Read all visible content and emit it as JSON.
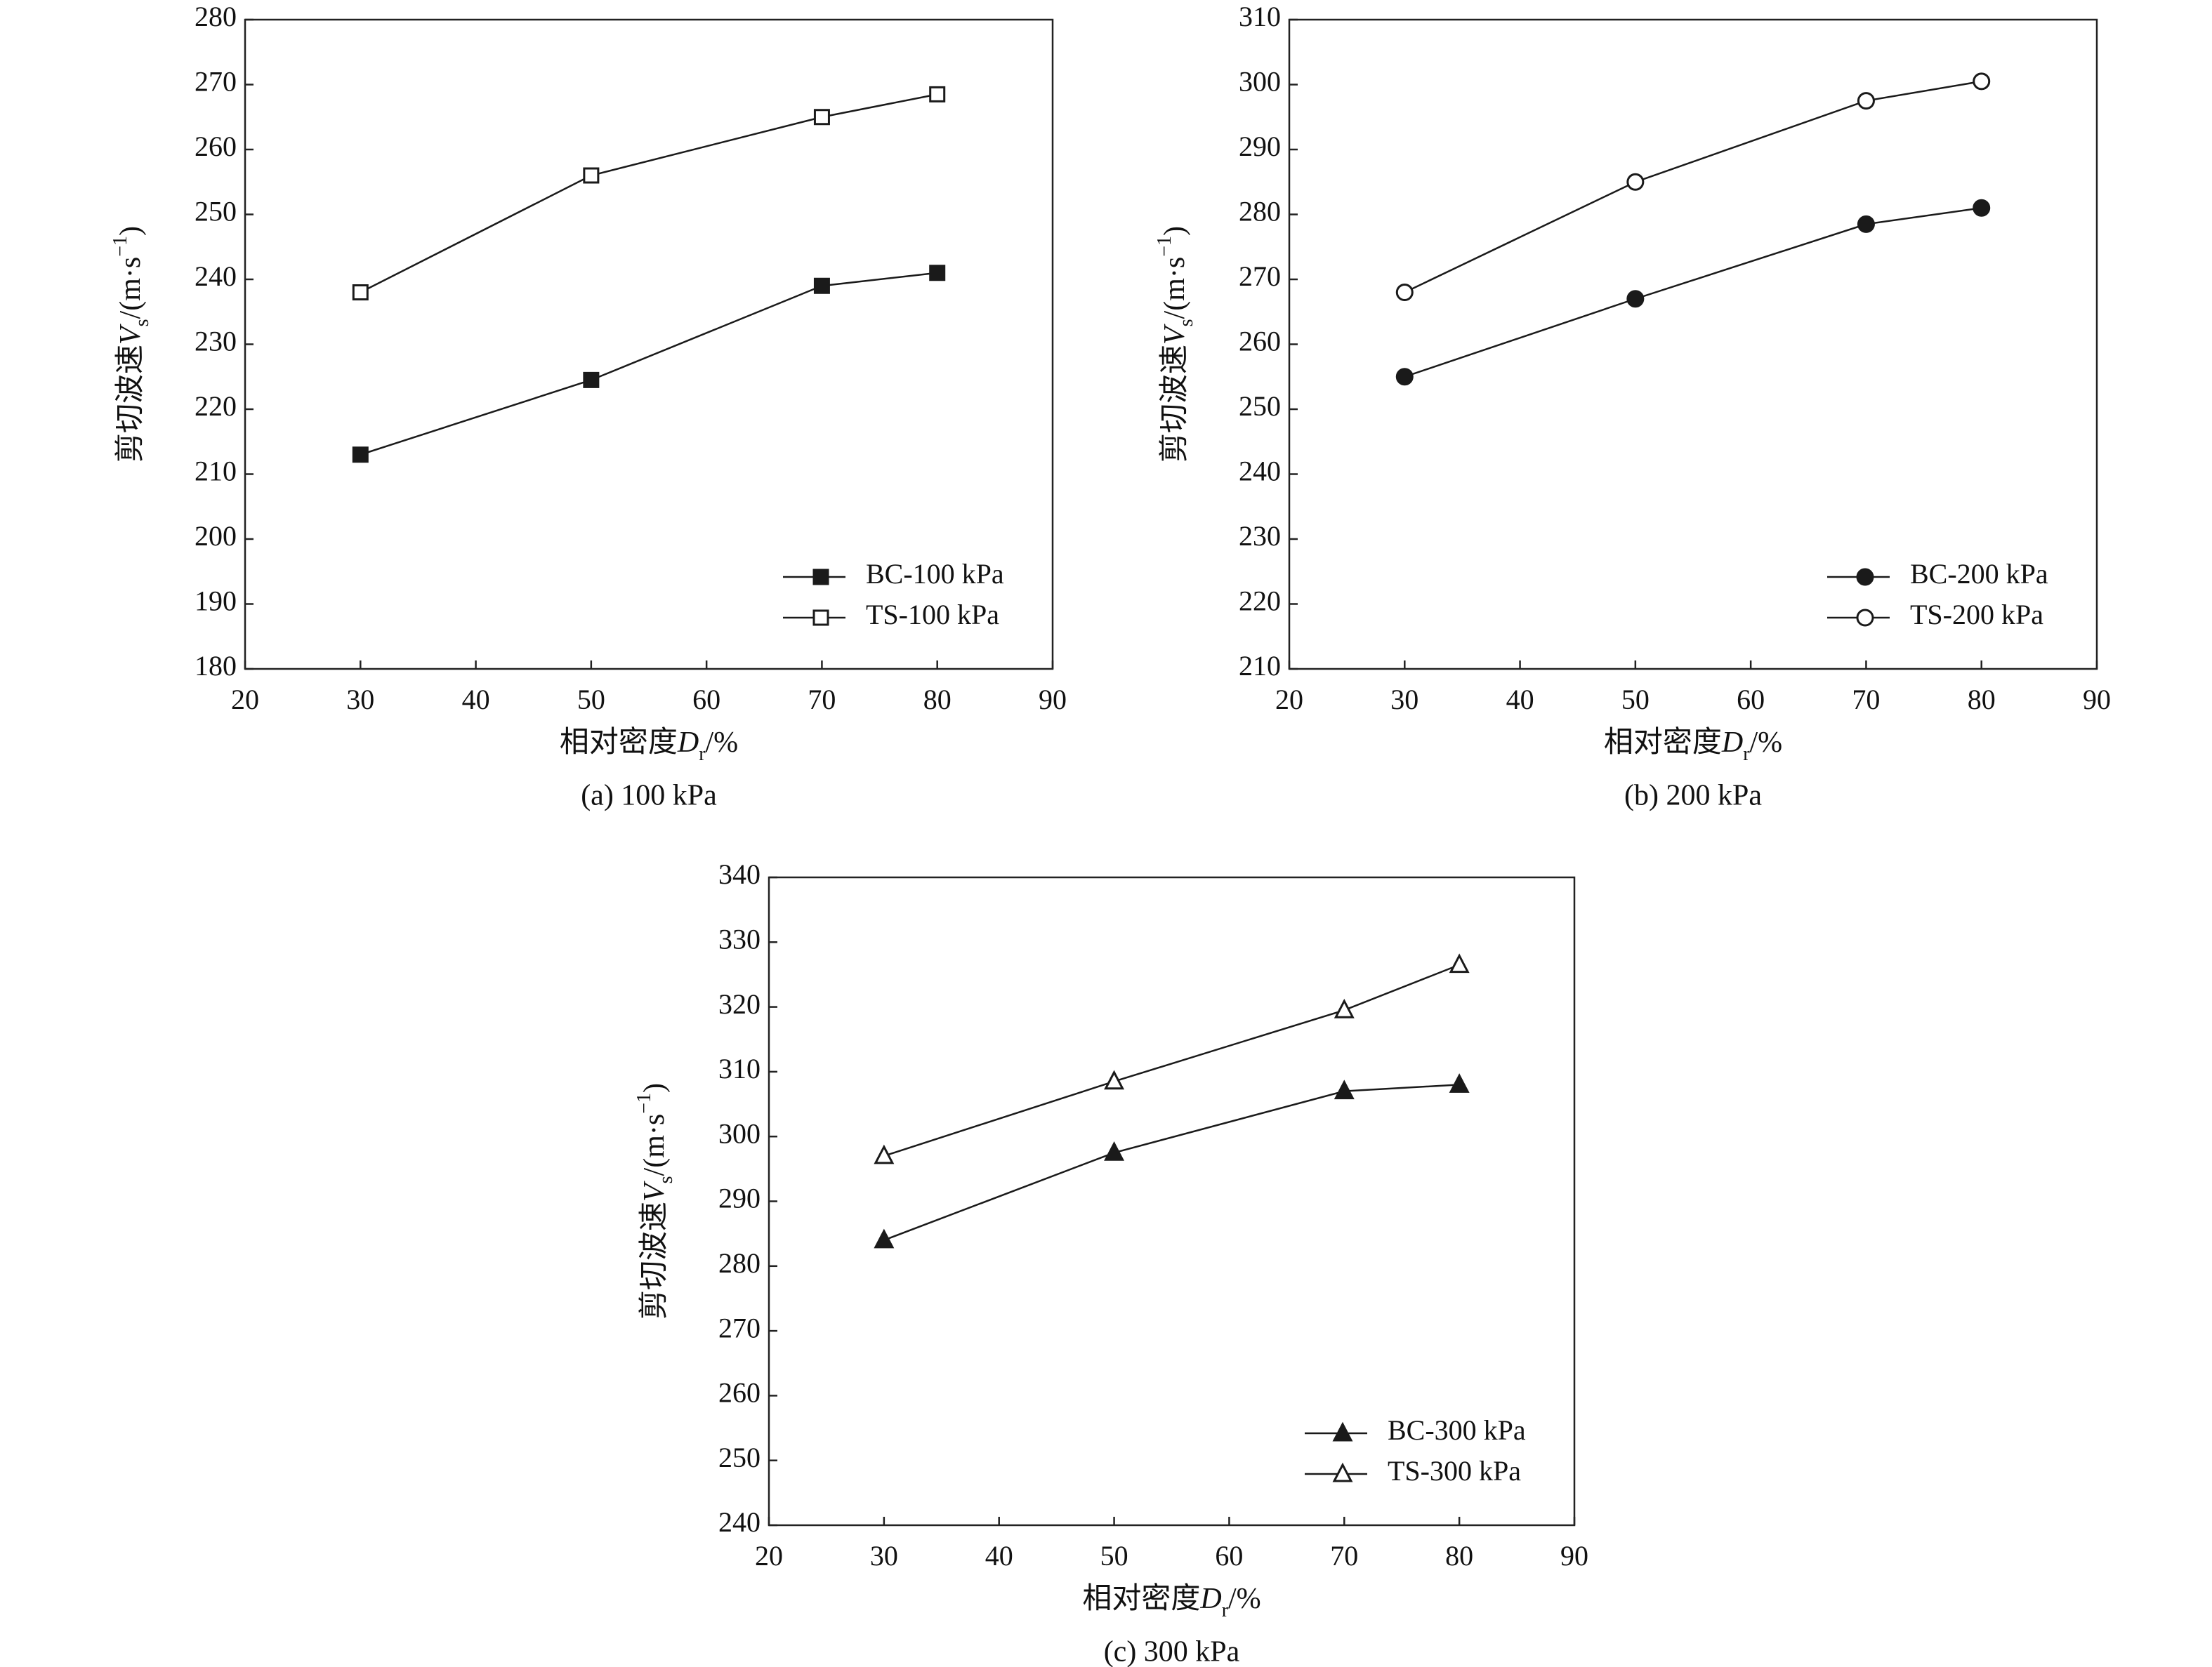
{
  "chart_data": [
    {
      "type": "line",
      "subtitle": "(a) 100 kPa",
      "xlabel": [
        "相对密度",
        "D",
        "r",
        "/%"
      ],
      "ylabel": [
        "剪切波速",
        "V",
        "s",
        "/(m·s",
        "−1",
        ")"
      ],
      "x": [
        30,
        50,
        70,
        80
      ],
      "series": [
        {
          "name": "BC-100 kPa",
          "color": "#1a1a1a",
          "marker": "square",
          "filled": true,
          "values": [
            213,
            224.5,
            239,
            241
          ]
        },
        {
          "name": "TS-100 kPa",
          "color": "#1a1a1a",
          "marker": "square",
          "filled": false,
          "values": [
            238,
            256,
            265,
            268.5
          ]
        }
      ],
      "xlim": [
        20,
        90
      ],
      "xticks": [
        20,
        30,
        40,
        50,
        60,
        70,
        80,
        90
      ],
      "ylim": [
        180,
        280
      ],
      "yticks": [
        180,
        190,
        200,
        210,
        220,
        230,
        240,
        250,
        260,
        270,
        280
      ],
      "legend": "lower right"
    },
    {
      "type": "line",
      "subtitle": "(b) 200 kPa",
      "xlabel": [
        "相对密度",
        "D",
        "r",
        "/%"
      ],
      "ylabel": [
        "剪切波速",
        "V",
        "s",
        "/(m·s",
        "−1",
        ")"
      ],
      "x": [
        30,
        50,
        70,
        80
      ],
      "series": [
        {
          "name": "BC-200 kPa",
          "color": "#1a1a1a",
          "marker": "circle",
          "filled": true,
          "values": [
            255,
            267,
            278.5,
            281
          ]
        },
        {
          "name": "TS-200 kPa",
          "color": "#1a1a1a",
          "marker": "circle",
          "filled": false,
          "values": [
            268,
            285,
            297.5,
            300.5
          ]
        }
      ],
      "xlim": [
        20,
        90
      ],
      "xticks": [
        20,
        30,
        40,
        50,
        60,
        70,
        80,
        90
      ],
      "ylim": [
        210,
        310
      ],
      "yticks": [
        210,
        220,
        230,
        240,
        250,
        260,
        270,
        280,
        290,
        300,
        310
      ],
      "legend": "lower right"
    },
    {
      "type": "line",
      "subtitle": "(c) 300 kPa",
      "xlabel": [
        "相对密度",
        "D",
        "r",
        "/%"
      ],
      "ylabel": [
        "剪切波速",
        "V",
        "s",
        "/(m·s",
        "−1",
        ")"
      ],
      "x": [
        30,
        50,
        70,
        80
      ],
      "series": [
        {
          "name": "BC-300 kPa",
          "color": "#1a1a1a",
          "marker": "triangle",
          "filled": true,
          "values": [
            284,
            297.5,
            307,
            308
          ]
        },
        {
          "name": "TS-300 kPa",
          "color": "#1a1a1a",
          "marker": "triangle",
          "filled": false,
          "values": [
            297,
            308.5,
            319.5,
            326.5
          ]
        }
      ],
      "xlim": [
        20,
        90
      ],
      "xticks": [
        20,
        30,
        40,
        50,
        60,
        70,
        80,
        90
      ],
      "ylim": [
        240,
        340
      ],
      "yticks": [
        240,
        250,
        260,
        270,
        280,
        290,
        300,
        310,
        320,
        330,
        340
      ],
      "legend": "lower right"
    }
  ]
}
